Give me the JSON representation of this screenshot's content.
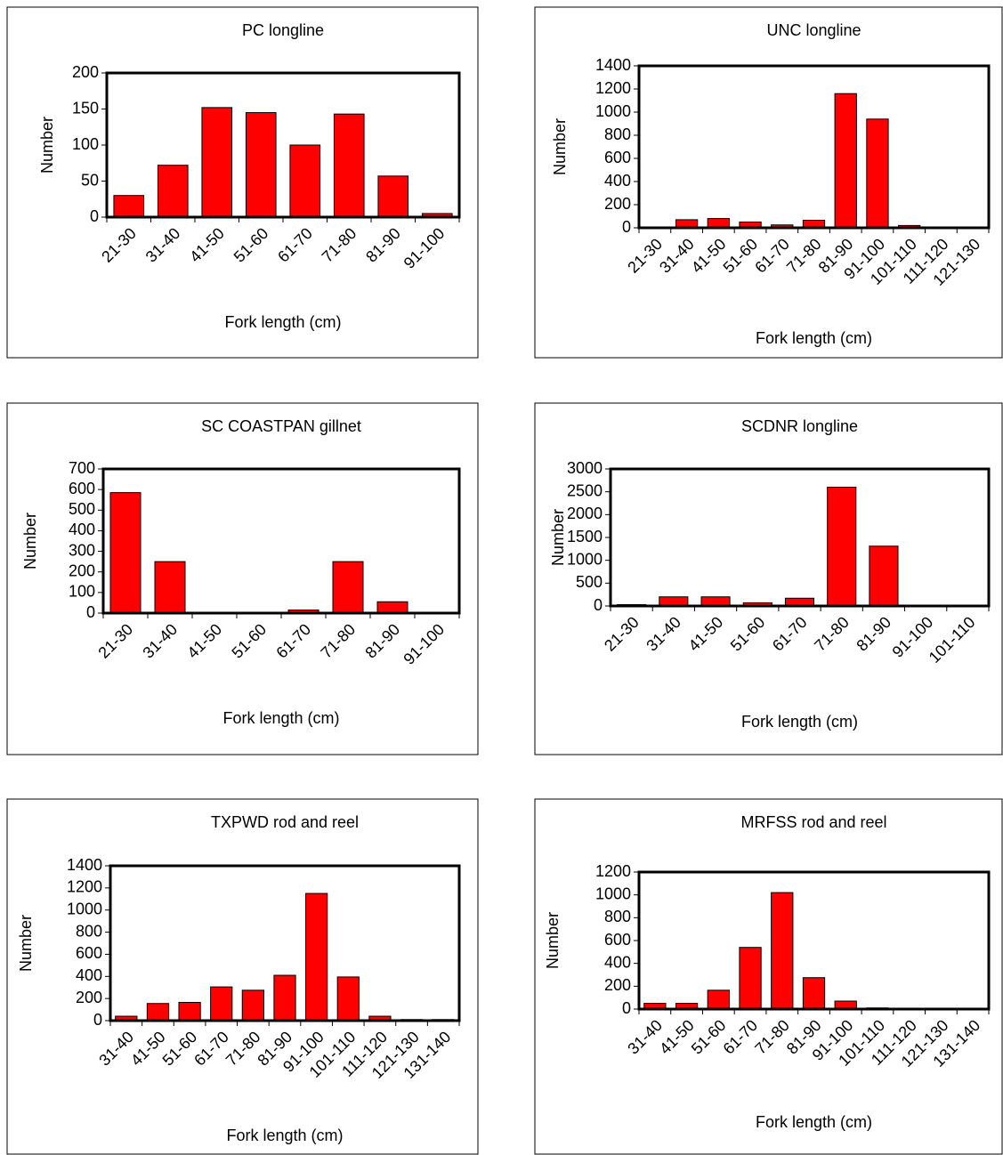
{
  "chart_data": [
    {
      "type": "bar",
      "title": "PC longline",
      "x_label": "Fork length (cm)",
      "y_label": "Number",
      "categories": [
        "21-30",
        "31-40",
        "41-50",
        "51-60",
        "61-70",
        "71-80",
        "81-90",
        "91-100"
      ],
      "values": [
        30,
        72,
        152,
        145,
        100,
        143,
        57,
        5
      ],
      "color": "#ff0000",
      "ylim": [
        0,
        200
      ],
      "yticks": [
        0,
        50,
        100,
        150,
        200
      ]
    },
    {
      "type": "bar",
      "title": "UNC longline",
      "x_label": "Fork length (cm)",
      "y_label": "Number",
      "categories": [
        "21-30",
        "31-40",
        "41-50",
        "51-60",
        "61-70",
        "71-80",
        "81-90",
        "91-100",
        "101-110",
        "111-120",
        "121-130"
      ],
      "values": [
        0,
        70,
        80,
        50,
        25,
        65,
        1160,
        940,
        20,
        0,
        0
      ],
      "color": "#ff0000",
      "ylim": [
        0,
        1400
      ],
      "yticks": [
        0,
        200,
        400,
        600,
        800,
        1000,
        1200,
        1400
      ]
    },
    {
      "type": "bar",
      "title": "SC COASTPAN gillnet",
      "x_label": "Fork length (cm)",
      "y_label": "Number",
      "categories": [
        "21-30",
        "31-40",
        "41-50",
        "51-60",
        "61-70",
        "71-80",
        "81-90",
        "91-100"
      ],
      "values": [
        585,
        250,
        0,
        0,
        15,
        250,
        55,
        0
      ],
      "color": "#ff0000",
      "ylim": [
        0,
        700
      ],
      "yticks": [
        0,
        100,
        200,
        300,
        400,
        500,
        600,
        700
      ]
    },
    {
      "type": "bar",
      "title": "SCDNR longline",
      "x_label": "Fork length (cm)",
      "y_label": "Number",
      "categories": [
        "21-30",
        "31-40",
        "41-50",
        "51-60",
        "61-70",
        "71-80",
        "81-90",
        "91-100",
        "101-110"
      ],
      "values": [
        30,
        200,
        200,
        70,
        170,
        2600,
        1310,
        0,
        0
      ],
      "color": "#ff0000",
      "ylim": [
        0,
        3000
      ],
      "yticks": [
        0,
        500,
        1000,
        1500,
        2000,
        2500,
        3000
      ]
    },
    {
      "type": "bar",
      "title": "TXPWD rod and reel",
      "x_label": "Fork length (cm)",
      "y_label": "Number",
      "categories": [
        "31-40",
        "41-50",
        "51-60",
        "61-70",
        "71-80",
        "81-90",
        "91-100",
        "101-110",
        "111-120",
        "121-130",
        "131-140"
      ],
      "values": [
        40,
        155,
        165,
        305,
        275,
        410,
        1150,
        395,
        40,
        10,
        10
      ],
      "color": "#ff0000",
      "ylim": [
        0,
        1400
      ],
      "yticks": [
        0,
        200,
        400,
        600,
        800,
        1000,
        1200,
        1400
      ]
    },
    {
      "type": "bar",
      "title": "MRFSS rod and reel",
      "x_label": "Fork length (cm)",
      "y_label": "Number",
      "categories": [
        "31-40",
        "41-50",
        "51-60",
        "61-70",
        "71-80",
        "81-90",
        "91-100",
        "101-110",
        "111-120",
        "121-130",
        "131-140"
      ],
      "values": [
        50,
        50,
        165,
        540,
        1020,
        275,
        70,
        10,
        0,
        0,
        0
      ],
      "color": "#ff0000",
      "ylim": [
        0,
        1200
      ],
      "yticks": [
        0,
        200,
        400,
        600,
        800,
        1000,
        1200
      ]
    }
  ]
}
